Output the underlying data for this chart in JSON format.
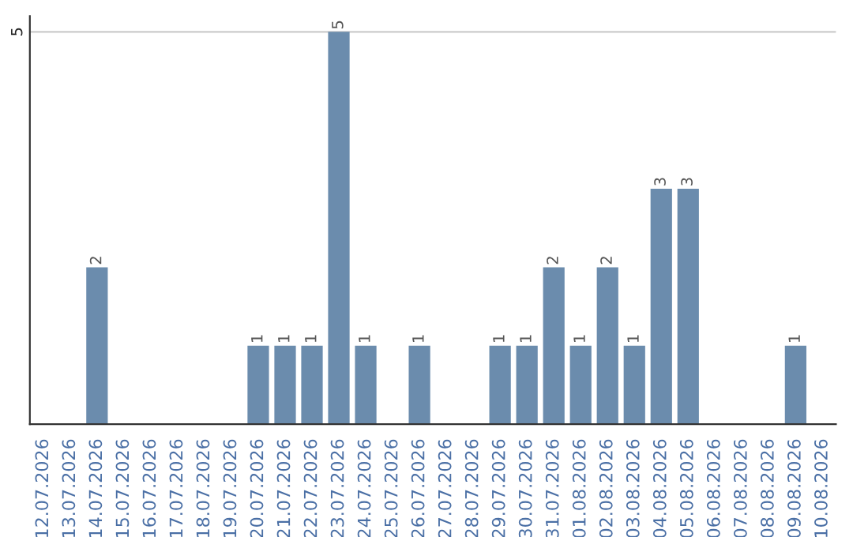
{
  "chart_data": {
    "type": "bar",
    "categories": [
      "12.07.2026",
      "13.07.2026",
      "14.07.2026",
      "15.07.2026",
      "16.07.2026",
      "17.07.2026",
      "18.07.2026",
      "19.07.2026",
      "20.07.2026",
      "21.07.2026",
      "22.07.2026",
      "23.07.2026",
      "24.07.2026",
      "25.07.2026",
      "26.07.2026",
      "27.07.2026",
      "28.07.2026",
      "29.07.2026",
      "30.07.2026",
      "31.07.2026",
      "01.08.2026",
      "02.08.2026",
      "03.08.2026",
      "04.08.2026",
      "05.08.2026",
      "06.08.2026",
      "07.08.2026",
      "08.08.2026",
      "09.08.2026",
      "10.08.2026"
    ],
    "values": [
      0,
      0,
      2,
      0,
      0,
      0,
      0,
      0,
      1,
      1,
      1,
      5,
      1,
      0,
      1,
      0,
      0,
      1,
      1,
      2,
      1,
      2,
      1,
      3,
      3,
      0,
      0,
      0,
      1,
      0
    ],
    "value_labels": [
      null,
      null,
      "2",
      null,
      null,
      null,
      null,
      null,
      "1",
      "1",
      "1",
      "5",
      "1",
      null,
      "1",
      null,
      null,
      "1",
      "1",
      "2",
      "1",
      "2",
      "1",
      "3",
      "3",
      null,
      null,
      null,
      "1",
      null
    ],
    "color": "#6b8cad",
    "ylim": [
      0,
      5.2
    ],
    "yticks": [
      5
    ],
    "grid": "y",
    "legend": false
  }
}
